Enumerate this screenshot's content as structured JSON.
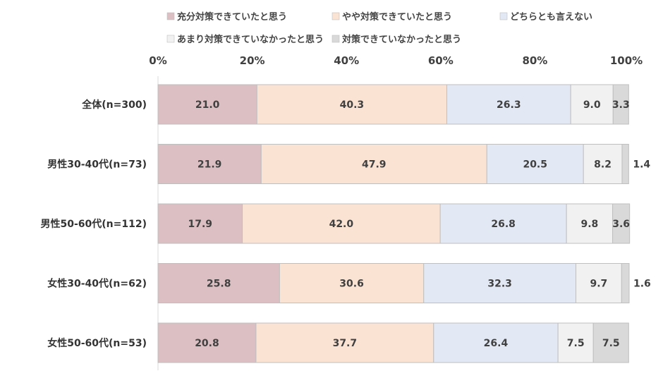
{
  "chart_data": {
    "type": "bar",
    "orientation": "horizontal",
    "stacked": true,
    "percent": true,
    "xlim": [
      0,
      100
    ],
    "tick_labels": [
      "0%",
      "20%",
      "40%",
      "60%",
      "80%",
      "100%"
    ],
    "tick_values": [
      0,
      20,
      40,
      60,
      80,
      100
    ],
    "grid": false,
    "legend_position": "top",
    "categories": [
      "全体(n=300)",
      "男性30-40代(n=73)",
      "男性50-60代(n=112)",
      "女性30-40代(n=62)",
      "女性50-60代(n=53)"
    ],
    "series": [
      {
        "name": "充分対策できていたと思う",
        "color": "#dcbfc2",
        "labels": [
          "21.0",
          "21.9",
          "17.9",
          "25.8",
          "20.8"
        ],
        "values": [
          21.0,
          21.9,
          17.9,
          25.8,
          20.8
        ]
      },
      {
        "name": "やや対策できていたと思う",
        "color": "#fbe3d3",
        "labels": [
          "40.3",
          "47.9",
          "42.0",
          "30.6",
          "37.7"
        ],
        "values": [
          40.3,
          47.9,
          42.0,
          30.6,
          37.7
        ]
      },
      {
        "name": "どちらとも言えない",
        "color": "#e2e9f4",
        "labels": [
          "26.3",
          "20.5",
          "26.8",
          "32.3",
          "26.4"
        ],
        "values": [
          26.3,
          20.5,
          26.8,
          32.3,
          26.4
        ]
      },
      {
        "name": "あまり対策できていなかったと思う",
        "color": "#f1f1f1",
        "labels": [
          "9.0",
          "8.2",
          "9.8",
          "9.7",
          "7.5"
        ],
        "values": [
          9.0,
          8.2,
          9.8,
          9.7,
          7.5
        ]
      },
      {
        "name": "対策できていなかったと思う",
        "color": "#d9d9d9",
        "labels": [
          "3.3",
          "1.4",
          "3.6",
          "1.6",
          "7.5"
        ],
        "values": [
          3.3,
          1.4,
          3.6,
          1.6,
          7.5
        ]
      }
    ]
  }
}
